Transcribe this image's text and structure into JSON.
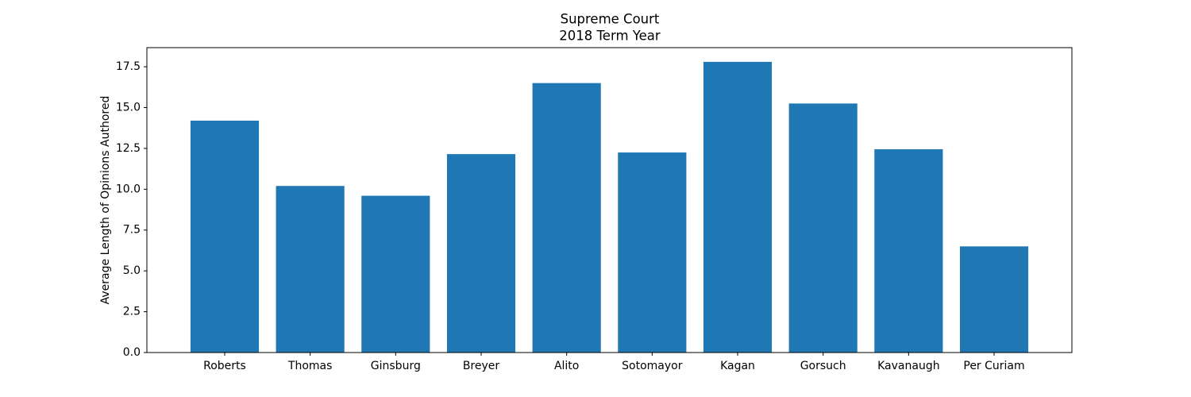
{
  "chart_data": {
    "type": "bar",
    "title": "Supreme Court",
    "subtitle": "2018 Term Year",
    "y_label": "Average Length of Opinions Authored",
    "categories": [
      "Roberts",
      "Thomas",
      "Ginsburg",
      "Breyer",
      "Alito",
      "Sotomayor",
      "Kagan",
      "Gorsuch",
      "Kavanaugh",
      "Per Curiam"
    ],
    "values": [
      14.2,
      10.2,
      9.6,
      12.15,
      16.5,
      12.25,
      17.8,
      15.25,
      12.45,
      6.5
    ],
    "color": "#1f77b4",
    "ylim": [
      0,
      18.67
    ],
    "yticks": [
      {
        "value": 0,
        "label": "0.0"
      },
      2.5,
      {
        "value": 5,
        "label": "5.0"
      },
      7.5,
      {
        "value": 10,
        "label": "10.0"
      },
      12.5,
      {
        "value": 15,
        "label": "15.0"
      },
      17.5
    ],
    "grid": false
  }
}
